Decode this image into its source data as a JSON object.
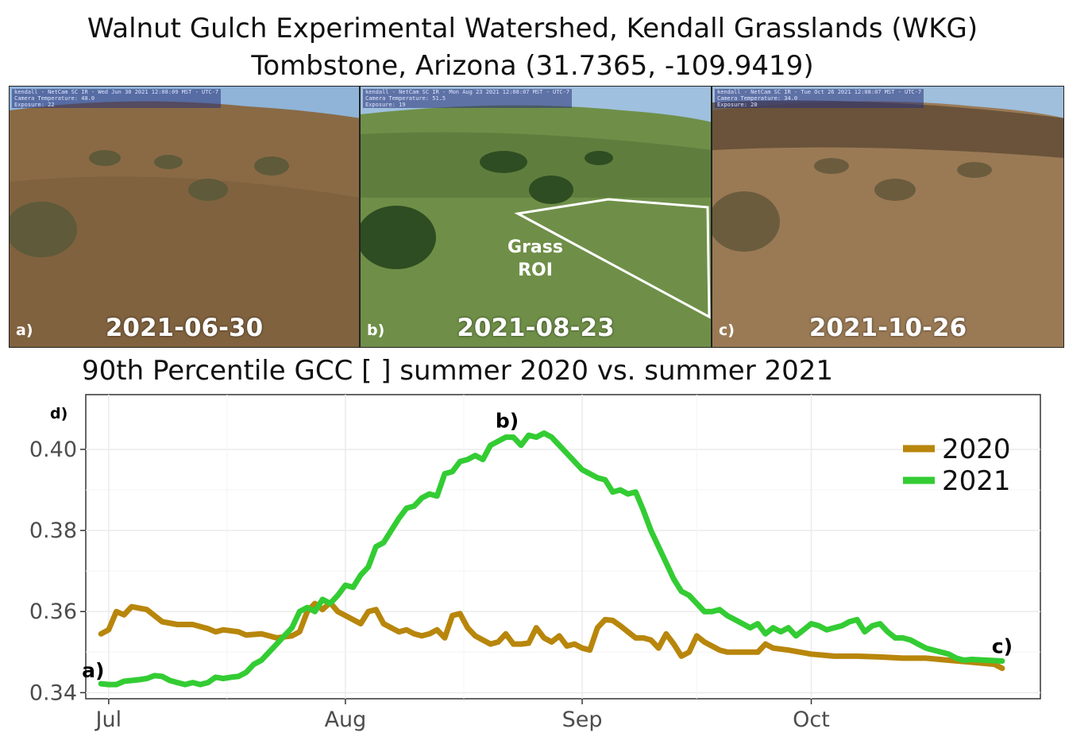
{
  "header": {
    "title_line1": "Walnut Gulch Experimental Watershed, Kendall Grasslands (WKG)",
    "title_line2": "Tombstone, Arizona (31.7365, -109.9419)"
  },
  "photos": [
    {
      "panel": "a)",
      "date": "2021-06-30",
      "hud": [
        "kendall - NetCam SC IR - Wed Jun 30 2021 12:08:09 MST - UTC-7",
        "Camera Temperature: 48.0",
        "Exposure: 22"
      ],
      "colors": {
        "sky": "#8fb4d8",
        "land": "#8a6a45",
        "land_dark": "#6e5335",
        "shrub": "#5e5a3a"
      }
    },
    {
      "panel": "b)",
      "date": "2021-08-23",
      "hud": [
        "kendall - NetCam SC IR - Mon Aug 23 2021 12:08:07 MST - UTC-7",
        "Camera Temperature: 51.5",
        "Exposure: 19"
      ],
      "roi_label_1": "Grass",
      "roi_label_2": "ROI",
      "colors": {
        "sky": "#9fc0de",
        "land": "#6f8f48",
        "land_dark": "#4f6d33",
        "shrub": "#2f4d22"
      }
    },
    {
      "panel": "c)",
      "date": "2021-10-26",
      "hud": [
        "kendall - NetCam SC IR - Tue Oct 26 2021 12:08:07 MST - UTC-7",
        "Camera Temperature: 34.0",
        "Exposure: 20"
      ],
      "colors": {
        "sky": "#9fbfdc",
        "land": "#9a7a55",
        "land_dark": "#5e4a33",
        "shrub": "#6b5c3e"
      }
    }
  ],
  "chart_title": "90th Percentile GCC [ ] summer 2020 vs. summer 2021",
  "chart_data": {
    "type": "line",
    "panel_label": "d)",
    "title": "90th Percentile GCC [ ] summer 2020 vs. summer 2021",
    "x_unit": "date",
    "xlim": [
      "2021-06-28",
      "2021-10-31"
    ],
    "ylim": [
      0.3385,
      0.4135
    ],
    "y_ticks": [
      "0.34",
      "0.36",
      "0.38",
      "0.40"
    ],
    "x_ticks": [
      {
        "label": "Jul",
        "date": "2021-07-01"
      },
      {
        "label": "Aug",
        "date": "2021-08-01"
      },
      {
        "label": "Sep",
        "date": "2021-09-01"
      },
      {
        "label": "Oct",
        "date": "2021-10-01"
      }
    ],
    "grid": true,
    "legend_position": "top-right",
    "series": [
      {
        "name": "2020",
        "color": "#b8860b",
        "points": [
          [
            "2021-06-30",
            0.3545
          ],
          [
            "2021-07-01",
            0.3555
          ],
          [
            "2021-07-02",
            0.36
          ],
          [
            "2021-07-03",
            0.3592
          ],
          [
            "2021-07-04",
            0.3612
          ],
          [
            "2021-07-06",
            0.3605
          ],
          [
            "2021-07-07",
            0.359
          ],
          [
            "2021-07-08",
            0.3575
          ],
          [
            "2021-07-10",
            0.3568
          ],
          [
            "2021-07-12",
            0.3568
          ],
          [
            "2021-07-14",
            0.3558
          ],
          [
            "2021-07-15",
            0.355
          ],
          [
            "2021-07-16",
            0.3555
          ],
          [
            "2021-07-18",
            0.355
          ],
          [
            "2021-07-19",
            0.3542
          ],
          [
            "2021-07-21",
            0.3545
          ],
          [
            "2021-07-22",
            0.354
          ],
          [
            "2021-07-23",
            0.3535
          ],
          [
            "2021-07-25",
            0.354
          ],
          [
            "2021-07-26",
            0.355
          ],
          [
            "2021-07-27",
            0.36
          ],
          [
            "2021-07-28",
            0.362
          ],
          [
            "2021-07-29",
            0.3605
          ],
          [
            "2021-07-30",
            0.3622
          ],
          [
            "2021-07-31",
            0.36
          ],
          [
            "2021-08-02",
            0.358
          ],
          [
            "2021-08-03",
            0.357
          ],
          [
            "2021-08-04",
            0.36
          ],
          [
            "2021-08-05",
            0.3605
          ],
          [
            "2021-08-06",
            0.357
          ],
          [
            "2021-08-07",
            0.356
          ],
          [
            "2021-08-08",
            0.355
          ],
          [
            "2021-08-09",
            0.3555
          ],
          [
            "2021-08-10",
            0.3545
          ],
          [
            "2021-08-11",
            0.354
          ],
          [
            "2021-08-12",
            0.3545
          ],
          [
            "2021-08-13",
            0.3555
          ],
          [
            "2021-08-14",
            0.3535
          ],
          [
            "2021-08-15",
            0.359
          ],
          [
            "2021-08-16",
            0.3595
          ],
          [
            "2021-08-17",
            0.356
          ],
          [
            "2021-08-18",
            0.354
          ],
          [
            "2021-08-19",
            0.353
          ],
          [
            "2021-08-20",
            0.352
          ],
          [
            "2021-08-21",
            0.3525
          ],
          [
            "2021-08-22",
            0.3545
          ],
          [
            "2021-08-23",
            0.352
          ],
          [
            "2021-08-24",
            0.352
          ],
          [
            "2021-08-25",
            0.3522
          ],
          [
            "2021-08-26",
            0.356
          ],
          [
            "2021-08-27",
            0.3535
          ],
          [
            "2021-08-28",
            0.3525
          ],
          [
            "2021-08-29",
            0.354
          ],
          [
            "2021-08-30",
            0.3515
          ],
          [
            "2021-08-31",
            0.352
          ],
          [
            "2021-09-01",
            0.351
          ],
          [
            "2021-09-02",
            0.3505
          ],
          [
            "2021-09-03",
            0.356
          ],
          [
            "2021-09-04",
            0.358
          ],
          [
            "2021-09-05",
            0.3578
          ],
          [
            "2021-09-06",
            0.3565
          ],
          [
            "2021-09-07",
            0.355
          ],
          [
            "2021-09-08",
            0.3535
          ],
          [
            "2021-09-09",
            0.3535
          ],
          [
            "2021-09-10",
            0.353
          ],
          [
            "2021-09-11",
            0.351
          ],
          [
            "2021-09-12",
            0.3545
          ],
          [
            "2021-09-13",
            0.352
          ],
          [
            "2021-09-14",
            0.349
          ],
          [
            "2021-09-15",
            0.35
          ],
          [
            "2021-09-16",
            0.354
          ],
          [
            "2021-09-17",
            0.3525
          ],
          [
            "2021-09-18",
            0.3515
          ],
          [
            "2021-09-19",
            0.3505
          ],
          [
            "2021-09-20",
            0.35
          ],
          [
            "2021-09-22",
            0.35
          ],
          [
            "2021-09-24",
            0.35
          ],
          [
            "2021-09-25",
            0.352
          ],
          [
            "2021-09-26",
            0.351
          ],
          [
            "2021-09-28",
            0.3505
          ],
          [
            "2021-10-01",
            0.3495
          ],
          [
            "2021-10-04",
            0.349
          ],
          [
            "2021-10-07",
            0.349
          ],
          [
            "2021-10-10",
            0.3488
          ],
          [
            "2021-10-13",
            0.3485
          ],
          [
            "2021-10-16",
            0.3485
          ],
          [
            "2021-10-19",
            0.348
          ],
          [
            "2021-10-22",
            0.3475
          ],
          [
            "2021-10-25",
            0.347
          ],
          [
            "2021-10-26",
            0.346
          ]
        ]
      },
      {
        "name": "2021",
        "color": "#33cc33",
        "points": [
          [
            "2021-06-30",
            0.3422
          ],
          [
            "2021-07-01",
            0.342
          ],
          [
            "2021-07-02",
            0.342
          ],
          [
            "2021-07-03",
            0.3428
          ],
          [
            "2021-07-05",
            0.3432
          ],
          [
            "2021-07-06",
            0.3435
          ],
          [
            "2021-07-07",
            0.3442
          ],
          [
            "2021-07-08",
            0.344
          ],
          [
            "2021-07-09",
            0.343
          ],
          [
            "2021-07-10",
            0.3425
          ],
          [
            "2021-07-11",
            0.342
          ],
          [
            "2021-07-12",
            0.3425
          ],
          [
            "2021-07-13",
            0.342
          ],
          [
            "2021-07-14",
            0.3425
          ],
          [
            "2021-07-15",
            0.3438
          ],
          [
            "2021-07-16",
            0.3435
          ],
          [
            "2021-07-17",
            0.3438
          ],
          [
            "2021-07-18",
            0.344
          ],
          [
            "2021-07-19",
            0.345
          ],
          [
            "2021-07-20",
            0.347
          ],
          [
            "2021-07-21",
            0.348
          ],
          [
            "2021-07-22",
            0.35
          ],
          [
            "2021-07-23",
            0.352
          ],
          [
            "2021-07-24",
            0.354
          ],
          [
            "2021-07-25",
            0.356
          ],
          [
            "2021-07-26",
            0.36
          ],
          [
            "2021-07-27",
            0.361
          ],
          [
            "2021-07-28",
            0.36
          ],
          [
            "2021-07-29",
            0.363
          ],
          [
            "2021-07-30",
            0.362
          ],
          [
            "2021-07-31",
            0.364
          ],
          [
            "2021-08-01",
            0.3665
          ],
          [
            "2021-08-02",
            0.366
          ],
          [
            "2021-08-03",
            0.369
          ],
          [
            "2021-08-04",
            0.371
          ],
          [
            "2021-08-05",
            0.376
          ],
          [
            "2021-08-06",
            0.377
          ],
          [
            "2021-08-07",
            0.38
          ],
          [
            "2021-08-08",
            0.383
          ],
          [
            "2021-08-09",
            0.3855
          ],
          [
            "2021-08-10",
            0.386
          ],
          [
            "2021-08-11",
            0.388
          ],
          [
            "2021-08-12",
            0.389
          ],
          [
            "2021-08-13",
            0.3885
          ],
          [
            "2021-08-14",
            0.394
          ],
          [
            "2021-08-15",
            0.3945
          ],
          [
            "2021-08-16",
            0.397
          ],
          [
            "2021-08-17",
            0.3975
          ],
          [
            "2021-08-18",
            0.3985
          ],
          [
            "2021-08-19",
            0.3975
          ],
          [
            "2021-08-20",
            0.401
          ],
          [
            "2021-08-21",
            0.402
          ],
          [
            "2021-08-22",
            0.403
          ],
          [
            "2021-08-23",
            0.403
          ],
          [
            "2021-08-24",
            0.401
          ],
          [
            "2021-08-25",
            0.4035
          ],
          [
            "2021-08-26",
            0.403
          ],
          [
            "2021-08-27",
            0.404
          ],
          [
            "2021-08-28",
            0.403
          ],
          [
            "2021-08-29",
            0.401
          ],
          [
            "2021-08-30",
            0.399
          ],
          [
            "2021-08-31",
            0.397
          ],
          [
            "2021-09-01",
            0.395
          ],
          [
            "2021-09-02",
            0.394
          ],
          [
            "2021-09-03",
            0.393
          ],
          [
            "2021-09-04",
            0.3925
          ],
          [
            "2021-09-05",
            0.3895
          ],
          [
            "2021-09-06",
            0.39
          ],
          [
            "2021-09-07",
            0.389
          ],
          [
            "2021-09-08",
            0.3895
          ],
          [
            "2021-09-09",
            0.385
          ],
          [
            "2021-09-10",
            0.38
          ],
          [
            "2021-09-11",
            0.376
          ],
          [
            "2021-09-12",
            0.372
          ],
          [
            "2021-09-13",
            0.368
          ],
          [
            "2021-09-14",
            0.365
          ],
          [
            "2021-09-15",
            0.364
          ],
          [
            "2021-09-16",
            0.362
          ],
          [
            "2021-09-17",
            0.36
          ],
          [
            "2021-09-18",
            0.36
          ],
          [
            "2021-09-19",
            0.3605
          ],
          [
            "2021-09-20",
            0.359
          ],
          [
            "2021-09-21",
            0.358
          ],
          [
            "2021-09-22",
            0.357
          ],
          [
            "2021-09-23",
            0.356
          ],
          [
            "2021-09-24",
            0.357
          ],
          [
            "2021-09-25",
            0.3545
          ],
          [
            "2021-09-26",
            0.356
          ],
          [
            "2021-09-27",
            0.355
          ],
          [
            "2021-09-28",
            0.356
          ],
          [
            "2021-09-29",
            0.354
          ],
          [
            "2021-09-30",
            0.3555
          ],
          [
            "2021-10-01",
            0.357
          ],
          [
            "2021-10-02",
            0.3565
          ],
          [
            "2021-10-03",
            0.3555
          ],
          [
            "2021-10-04",
            0.356
          ],
          [
            "2021-10-05",
            0.3565
          ],
          [
            "2021-10-06",
            0.3575
          ],
          [
            "2021-10-07",
            0.358
          ],
          [
            "2021-10-08",
            0.355
          ],
          [
            "2021-10-09",
            0.3565
          ],
          [
            "2021-10-10",
            0.357
          ],
          [
            "2021-10-11",
            0.355
          ],
          [
            "2021-10-12",
            0.3535
          ],
          [
            "2021-10-13",
            0.3535
          ],
          [
            "2021-10-14",
            0.353
          ],
          [
            "2021-10-15",
            0.352
          ],
          [
            "2021-10-16",
            0.351
          ],
          [
            "2021-10-17",
            0.3505
          ],
          [
            "2021-10-18",
            0.35
          ],
          [
            "2021-10-19",
            0.3495
          ],
          [
            "2021-10-20",
            0.3485
          ],
          [
            "2021-10-21",
            0.348
          ],
          [
            "2021-10-22",
            0.3482
          ],
          [
            "2021-10-24",
            0.348
          ],
          [
            "2021-10-26",
            0.3478
          ]
        ]
      }
    ],
    "annotations": [
      {
        "text": "a)",
        "date": "2021-06-30",
        "y": 0.3422
      },
      {
        "text": "b)",
        "date": "2021-08-23",
        "y": 0.403
      },
      {
        "text": "c)",
        "date": "2021-10-26",
        "y": 0.3478
      }
    ]
  }
}
